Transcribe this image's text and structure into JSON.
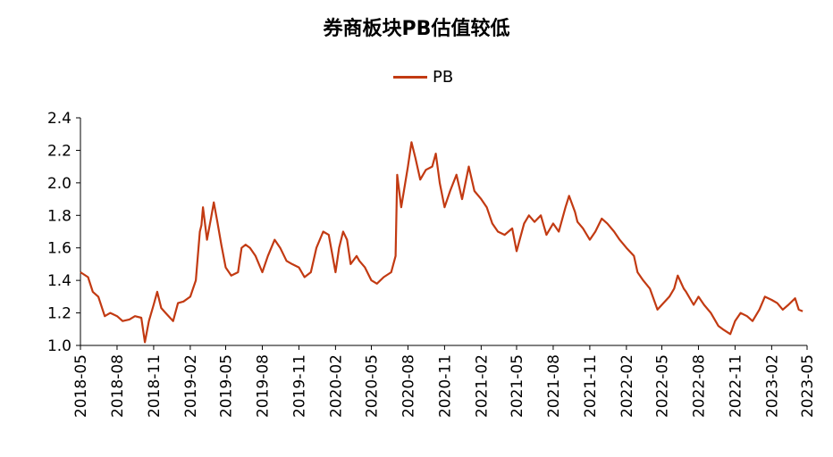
{
  "chart_data": {
    "type": "line",
    "title": "券商板块PB估值较低",
    "xlabel": "",
    "ylabel": "",
    "ylim": [
      1.0,
      2.4
    ],
    "yticks": [
      "1.0",
      "1.2",
      "1.4",
      "1.6",
      "1.8",
      "2.0",
      "2.2",
      "2.4"
    ],
    "xticks": [
      "2018-05",
      "2018-08",
      "2018-11",
      "2019-02",
      "2019-05",
      "2019-08",
      "2019-11",
      "2020-02",
      "2020-05",
      "2020-08",
      "2020-11",
      "2021-02",
      "2021-05",
      "2021-08",
      "2021-11",
      "2022-02",
      "2022-05",
      "2022-08",
      "2022-11",
      "2023-02",
      "2023-05"
    ],
    "legend": "top-center",
    "grid": false,
    "color": "#C23A12",
    "series": [
      {
        "name": "PB",
        "points": [
          [
            "2018-05",
            1.45
          ],
          [
            "2018-05-20",
            1.42
          ],
          [
            "2018-06",
            1.33
          ],
          [
            "2018-06-15",
            1.3
          ],
          [
            "2018-07",
            1.18
          ],
          [
            "2018-07-15",
            1.2
          ],
          [
            "2018-08",
            1.18
          ],
          [
            "2018-08-15",
            1.15
          ],
          [
            "2018-09",
            1.16
          ],
          [
            "2018-09-15",
            1.18
          ],
          [
            "2018-10",
            1.17
          ],
          [
            "2018-10-10",
            1.02
          ],
          [
            "2018-10-20",
            1.15
          ],
          [
            "2018-11",
            1.25
          ],
          [
            "2018-11-10",
            1.33
          ],
          [
            "2018-11-20",
            1.23
          ],
          [
            "2018-12",
            1.2
          ],
          [
            "2018-12-20",
            1.15
          ],
          [
            "2019-01",
            1.26
          ],
          [
            "2019-01-15",
            1.27
          ],
          [
            "2019-02",
            1.3
          ],
          [
            "2019-02-15",
            1.4
          ],
          [
            "2019-02-25",
            1.7
          ],
          [
            "2019-03",
            1.74
          ],
          [
            "2019-03-05",
            1.85
          ],
          [
            "2019-03-15",
            1.65
          ],
          [
            "2019-03-25",
            1.78
          ],
          [
            "2019-04",
            1.88
          ],
          [
            "2019-04-10",
            1.76
          ],
          [
            "2019-04-20",
            1.62
          ],
          [
            "2019-05",
            1.48
          ],
          [
            "2019-05-15",
            1.43
          ],
          [
            "2019-06",
            1.45
          ],
          [
            "2019-06-10",
            1.6
          ],
          [
            "2019-06-20",
            1.62
          ],
          [
            "2019-07",
            1.6
          ],
          [
            "2019-07-15",
            1.55
          ],
          [
            "2019-08",
            1.45
          ],
          [
            "2019-08-15",
            1.55
          ],
          [
            "2019-09",
            1.65
          ],
          [
            "2019-09-15",
            1.6
          ],
          [
            "2019-10",
            1.52
          ],
          [
            "2019-10-15",
            1.5
          ],
          [
            "2019-11",
            1.48
          ],
          [
            "2019-11-15",
            1.42
          ],
          [
            "2019-12",
            1.45
          ],
          [
            "2019-12-15",
            1.6
          ],
          [
            "2020-01",
            1.7
          ],
          [
            "2020-01-15",
            1.68
          ],
          [
            "2020-02",
            1.45
          ],
          [
            "2020-02-10",
            1.6
          ],
          [
            "2020-02-20",
            1.7
          ],
          [
            "2020-03",
            1.65
          ],
          [
            "2020-03-10",
            1.5
          ],
          [
            "2020-03-25",
            1.55
          ],
          [
            "2020-04",
            1.52
          ],
          [
            "2020-04-15",
            1.48
          ],
          [
            "2020-05",
            1.4
          ],
          [
            "2020-05-15",
            1.38
          ],
          [
            "2020-06",
            1.42
          ],
          [
            "2020-06-20",
            1.45
          ],
          [
            "2020-07",
            1.55
          ],
          [
            "2020-07-05",
            2.05
          ],
          [
            "2020-07-15",
            1.85
          ],
          [
            "2020-08",
            2.1
          ],
          [
            "2020-08-10",
            2.25
          ],
          [
            "2020-08-20",
            2.15
          ],
          [
            "2020-09",
            2.02
          ],
          [
            "2020-09-15",
            2.08
          ],
          [
            "2020-10",
            2.1
          ],
          [
            "2020-10-10",
            2.18
          ],
          [
            "2020-10-20",
            2.0
          ],
          [
            "2020-11",
            1.85
          ],
          [
            "2020-11-15",
            1.95
          ],
          [
            "2020-12",
            2.05
          ],
          [
            "2020-12-15",
            1.9
          ],
          [
            "2021-01",
            2.1
          ],
          [
            "2021-01-15",
            1.95
          ],
          [
            "2021-02",
            1.9
          ],
          [
            "2021-02-15",
            1.85
          ],
          [
            "2021-03",
            1.75
          ],
          [
            "2021-03-15",
            1.7
          ],
          [
            "2021-04",
            1.68
          ],
          [
            "2021-04-20",
            1.72
          ],
          [
            "2021-05",
            1.58
          ],
          [
            "2021-05-20",
            1.75
          ],
          [
            "2021-06",
            1.8
          ],
          [
            "2021-06-15",
            1.76
          ],
          [
            "2021-07",
            1.8
          ],
          [
            "2021-07-15",
            1.68
          ],
          [
            "2021-08",
            1.75
          ],
          [
            "2021-08-15",
            1.7
          ],
          [
            "2021-09",
            1.85
          ],
          [
            "2021-09-10",
            1.92
          ],
          [
            "2021-09-25",
            1.82
          ],
          [
            "2021-10",
            1.76
          ],
          [
            "2021-10-15",
            1.72
          ],
          [
            "2021-11",
            1.65
          ],
          [
            "2021-11-15",
            1.7
          ],
          [
            "2021-12",
            1.78
          ],
          [
            "2021-12-15",
            1.75
          ],
          [
            "2022-01",
            1.7
          ],
          [
            "2022-01-15",
            1.65
          ],
          [
            "2022-02",
            1.6
          ],
          [
            "2022-02-20",
            1.55
          ],
          [
            "2022-03",
            1.45
          ],
          [
            "2022-03-15",
            1.4
          ],
          [
            "2022-04",
            1.35
          ],
          [
            "2022-04-20",
            1.22
          ],
          [
            "2022-05",
            1.25
          ],
          [
            "2022-05-20",
            1.3
          ],
          [
            "2022-06",
            1.35
          ],
          [
            "2022-06-10",
            1.43
          ],
          [
            "2022-06-25",
            1.35
          ],
          [
            "2022-07",
            1.33
          ],
          [
            "2022-07-20",
            1.25
          ],
          [
            "2022-08",
            1.3
          ],
          [
            "2022-08-15",
            1.25
          ],
          [
            "2022-09",
            1.2
          ],
          [
            "2022-09-20",
            1.12
          ],
          [
            "2022-10",
            1.1
          ],
          [
            "2022-10-20",
            1.07
          ],
          [
            "2022-11",
            1.15
          ],
          [
            "2022-11-15",
            1.2
          ],
          [
            "2022-12",
            1.18
          ],
          [
            "2022-12-15",
            1.15
          ],
          [
            "2023-01",
            1.22
          ],
          [
            "2023-01-15",
            1.3
          ],
          [
            "2023-02",
            1.28
          ],
          [
            "2023-02-15",
            1.26
          ],
          [
            "2023-03",
            1.22
          ],
          [
            "2023-03-15",
            1.25
          ],
          [
            "2023-04",
            1.29
          ],
          [
            "2023-04-10",
            1.22
          ],
          [
            "2023-04-20",
            1.21
          ]
        ]
      }
    ]
  }
}
